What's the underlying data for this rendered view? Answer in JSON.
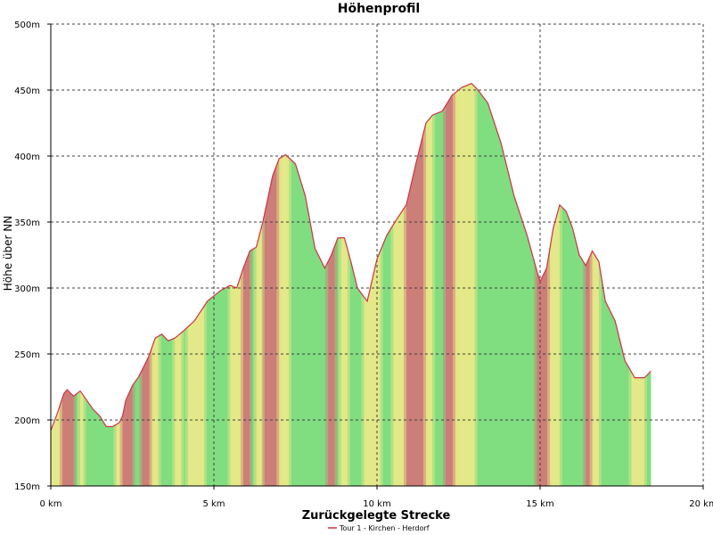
{
  "chart_data": {
    "type": "area",
    "title": "Höhenprofil",
    "xlabel": "Zurückgelegte Strecke",
    "ylabel": "Höhe über NN",
    "xlim": [
      0,
      20
    ],
    "ylim": [
      150,
      500
    ],
    "x_ticks": [
      0,
      5,
      10,
      15,
      20
    ],
    "x_tick_labels": [
      "0 km",
      "5 km",
      "10 km",
      "15 km",
      "20 km"
    ],
    "y_ticks": [
      150,
      200,
      250,
      300,
      350,
      400,
      450,
      500
    ],
    "y_tick_labels": [
      "150m",
      "200m",
      "250m",
      "300m",
      "350m",
      "400m",
      "450m",
      "500m"
    ],
    "grid": true,
    "legend": "bottom-center",
    "series": [
      {
        "name": "Tour 1 - Kirchen - Herdorf",
        "color": "#cc3344",
        "x": [
          0,
          0.2,
          0.4,
          0.5,
          0.7,
          0.9,
          1.1,
          1.3,
          1.5,
          1.7,
          1.9,
          2.1,
          2.2,
          2.3,
          2.5,
          2.7,
          3.0,
          3.2,
          3.4,
          3.6,
          3.8,
          4.0,
          4.4,
          4.8,
          5.2,
          5.5,
          5.7,
          5.9,
          6.1,
          6.3,
          6.5,
          6.8,
          7.0,
          7.2,
          7.5,
          7.8,
          8.1,
          8.4,
          8.6,
          8.8,
          9.0,
          9.2,
          9.4,
          9.7,
          10.0,
          10.3,
          10.6,
          10.9,
          11.2,
          11.5,
          11.7,
          12.0,
          12.3,
          12.6,
          12.9,
          13.1,
          13.4,
          13.8,
          14.2,
          14.6,
          14.9,
          15.0,
          15.2,
          15.4,
          15.6,
          15.8,
          16.0,
          16.2,
          16.4,
          16.6,
          16.8,
          17.0,
          17.3,
          17.6,
          17.9,
          18.2,
          18.4
        ],
        "values": [
          192,
          205,
          220,
          223,
          218,
          222,
          215,
          208,
          203,
          195,
          195,
          198,
          203,
          215,
          226,
          233,
          248,
          262,
          265,
          260,
          262,
          266,
          275,
          290,
          298,
          302,
          300,
          315,
          328,
          331,
          350,
          385,
          398,
          401,
          394,
          370,
          330,
          315,
          325,
          338,
          338,
          320,
          300,
          290,
          322,
          340,
          352,
          363,
          395,
          425,
          431,
          434,
          446,
          452,
          455,
          450,
          440,
          410,
          370,
          340,
          313,
          305,
          315,
          345,
          363,
          358,
          345,
          325,
          317,
          328,
          320,
          290,
          275,
          245,
          232,
          232,
          237
        ]
      }
    ],
    "slope_bands": [
      {
        "x0": 0.0,
        "x1": 0.35,
        "level": "mid"
      },
      {
        "x0": 0.35,
        "x1": 0.7,
        "level": "steep"
      },
      {
        "x0": 0.9,
        "x1": 1.0,
        "level": "mid"
      },
      {
        "x0": 2.0,
        "x1": 2.2,
        "level": "mid"
      },
      {
        "x0": 2.2,
        "x1": 2.5,
        "level": "steep"
      },
      {
        "x0": 2.8,
        "x1": 3.1,
        "level": "steep"
      },
      {
        "x0": 3.1,
        "x1": 3.3,
        "level": "mid"
      },
      {
        "x0": 3.8,
        "x1": 4.0,
        "level": "mid"
      },
      {
        "x0": 4.2,
        "x1": 4.7,
        "level": "mid"
      },
      {
        "x0": 5.5,
        "x1": 5.9,
        "level": "mid"
      },
      {
        "x0": 5.9,
        "x1": 6.1,
        "level": "steep"
      },
      {
        "x0": 6.3,
        "x1": 6.5,
        "level": "mid"
      },
      {
        "x0": 6.55,
        "x1": 7.0,
        "level": "steep"
      },
      {
        "x0": 7.0,
        "x1": 7.3,
        "level": "mid"
      },
      {
        "x0": 8.5,
        "x1": 8.7,
        "level": "steep"
      },
      {
        "x0": 8.9,
        "x1": 9.1,
        "level": "mid"
      },
      {
        "x0": 9.6,
        "x1": 10.1,
        "level": "mid"
      },
      {
        "x0": 10.5,
        "x1": 10.9,
        "level": "mid"
      },
      {
        "x0": 10.9,
        "x1": 11.5,
        "level": "steep"
      },
      {
        "x0": 11.5,
        "x1": 11.7,
        "level": "mid"
      },
      {
        "x0": 12.1,
        "x1": 12.4,
        "level": "steep"
      },
      {
        "x0": 12.4,
        "x1": 13.0,
        "level": "mid"
      },
      {
        "x0": 14.9,
        "x1": 15.3,
        "level": "steep"
      },
      {
        "x0": 15.3,
        "x1": 15.6,
        "level": "mid"
      },
      {
        "x0": 16.4,
        "x1": 16.6,
        "level": "steep"
      },
      {
        "x0": 16.6,
        "x1": 16.8,
        "level": "mid"
      },
      {
        "x0": 17.8,
        "x1": 18.2,
        "level": "mid"
      }
    ],
    "colors": {
      "flat": "#80dd80",
      "mid": "#e8e888",
      "steep": "#d07878",
      "line": "#cc3344",
      "grid": "#404040",
      "background": "#ffffff"
    }
  }
}
